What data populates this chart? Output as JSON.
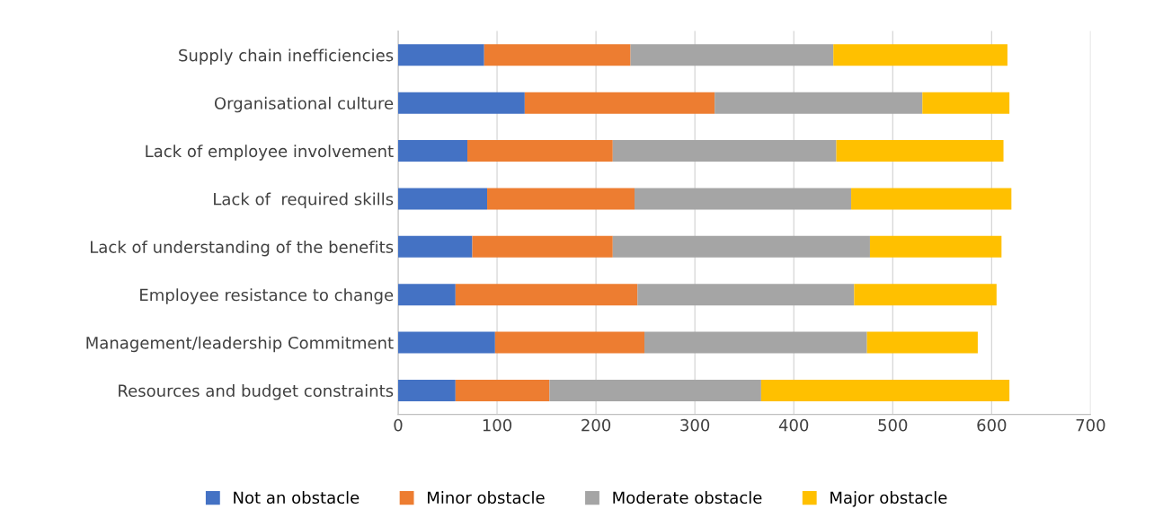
{
  "chart_data": {
    "type": "bar",
    "orientation": "horizontal",
    "stacked": true,
    "categories": [
      "Supply chain inefficiencies",
      "Organisational culture",
      "Lack of employee involvement",
      "Lack of  required skills",
      "Lack of understanding of the benefits",
      "Employee resistance to change",
      "Management/leadership Commitment",
      "Resources and budget constraints"
    ],
    "series": [
      {
        "name": "Not an obstacle",
        "color": "#4472c4",
        "values": [
          87,
          128,
          70,
          90,
          75,
          58,
          98,
          58
        ]
      },
      {
        "name": "Minor obstacle",
        "color": "#ed7d31",
        "values": [
          148,
          192,
          147,
          149,
          142,
          184,
          151,
          95
        ]
      },
      {
        "name": "Moderate obstacle",
        "color": "#a5a5a5",
        "values": [
          205,
          210,
          226,
          219,
          260,
          219,
          225,
          214
        ]
      },
      {
        "name": "Major obstacle",
        "color": "#ffc000",
        "values": [
          176,
          88,
          169,
          162,
          133,
          144,
          112,
          251
        ]
      }
    ],
    "xlim": [
      0,
      700
    ],
    "xticks": [
      0,
      100,
      200,
      300,
      400,
      500,
      600,
      700
    ],
    "grid": "x",
    "legend": "bottom"
  }
}
